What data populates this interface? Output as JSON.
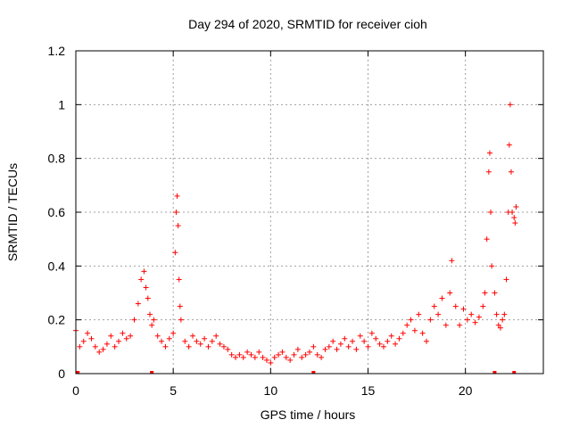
{
  "chart_data": {
    "type": "scatter",
    "title": "Day 294 of 2020, SRMTID for receiver cioh",
    "xlabel": "GPS time / hours",
    "ylabel": "SRMTID / TECUs",
    "xlim": [
      0,
      24
    ],
    "ylim": [
      0,
      1.2
    ],
    "xticks": [
      0,
      5,
      10,
      15,
      20
    ],
    "xtick_labels": [
      "0",
      "5",
      "10",
      "15",
      "20"
    ],
    "yticks": [
      0,
      0.2,
      0.4,
      0.6,
      0.8,
      1.0,
      1.2
    ],
    "ytick_labels": [
      "0",
      "0.2",
      "0.4",
      "0.6",
      "0.8",
      "1",
      "1.2"
    ],
    "grid": true,
    "marker": "+",
    "colors": {
      "series": "#ff0000",
      "grid": "#a0a0a0",
      "axis": "#000000"
    },
    "series": [
      {
        "name": "SRMTID",
        "x": [
          0.0,
          0.2,
          0.4,
          0.6,
          0.8,
          1.0,
          1.2,
          1.4,
          1.6,
          1.8,
          2.0,
          2.2,
          2.4,
          2.6,
          2.8,
          3.0,
          3.2,
          3.35,
          3.5,
          3.6,
          3.7,
          3.8,
          3.9,
          4.0,
          4.2,
          4.4,
          4.6,
          4.8,
          5.0,
          5.1,
          5.15,
          5.2,
          5.25,
          5.3,
          5.35,
          5.4,
          5.6,
          5.8,
          6.0,
          6.2,
          6.4,
          6.6,
          6.8,
          7.0,
          7.2,
          7.4,
          7.6,
          7.8,
          8.0,
          8.2,
          8.4,
          8.6,
          8.8,
          9.0,
          9.2,
          9.4,
          9.6,
          9.8,
          10.0,
          10.2,
          10.4,
          10.6,
          10.8,
          11.0,
          11.2,
          11.4,
          11.6,
          11.8,
          12.0,
          12.2,
          12.4,
          12.6,
          12.8,
          13.0,
          13.2,
          13.4,
          13.6,
          13.8,
          14.0,
          14.2,
          14.4,
          14.6,
          14.8,
          15.0,
          15.2,
          15.4,
          15.6,
          15.8,
          16.0,
          16.2,
          16.4,
          16.6,
          16.8,
          17.0,
          17.2,
          17.4,
          17.6,
          17.8,
          18.0,
          18.2,
          18.4,
          18.6,
          18.8,
          19.0,
          19.2,
          19.3,
          19.5,
          19.7,
          19.9,
          20.1,
          20.3,
          20.5,
          20.7,
          20.9,
          21.0,
          21.1,
          21.2,
          21.25,
          21.3,
          21.35,
          21.5,
          21.6,
          21.7,
          21.8,
          21.9,
          22.0,
          22.1,
          22.2,
          22.25,
          22.3,
          22.35,
          22.4,
          22.5,
          22.55,
          22.6
        ],
        "y": [
          0.16,
          0.1,
          0.12,
          0.15,
          0.13,
          0.1,
          0.08,
          0.09,
          0.11,
          0.14,
          0.1,
          0.12,
          0.15,
          0.13,
          0.14,
          0.2,
          0.26,
          0.35,
          0.38,
          0.32,
          0.28,
          0.22,
          0.18,
          0.2,
          0.14,
          0.12,
          0.1,
          0.13,
          0.15,
          0.45,
          0.6,
          0.66,
          0.55,
          0.35,
          0.25,
          0.2,
          0.12,
          0.1,
          0.14,
          0.12,
          0.11,
          0.13,
          0.1,
          0.12,
          0.14,
          0.11,
          0.1,
          0.09,
          0.07,
          0.06,
          0.07,
          0.06,
          0.08,
          0.07,
          0.06,
          0.08,
          0.06,
          0.05,
          0.04,
          0.06,
          0.07,
          0.08,
          0.06,
          0.05,
          0.07,
          0.09,
          0.06,
          0.07,
          0.08,
          0.1,
          0.07,
          0.06,
          0.09,
          0.1,
          0.12,
          0.09,
          0.11,
          0.13,
          0.1,
          0.12,
          0.09,
          0.14,
          0.12,
          0.1,
          0.15,
          0.13,
          0.11,
          0.1,
          0.12,
          0.14,
          0.11,
          0.13,
          0.15,
          0.18,
          0.2,
          0.16,
          0.22,
          0.15,
          0.12,
          0.2,
          0.25,
          0.22,
          0.28,
          0.18,
          0.3,
          0.42,
          0.25,
          0.18,
          0.24,
          0.2,
          0.22,
          0.19,
          0.21,
          0.25,
          0.3,
          0.5,
          0.75,
          0.82,
          0.6,
          0.4,
          0.3,
          0.22,
          0.18,
          0.17,
          0.2,
          0.22,
          0.35,
          0.6,
          0.85,
          1.0,
          0.75,
          0.6,
          0.58,
          0.56,
          0.62
        ]
      }
    ],
    "bottom_markers_x": [
      0.1,
      3.9,
      12.2,
      21.5,
      22.5
    ]
  }
}
